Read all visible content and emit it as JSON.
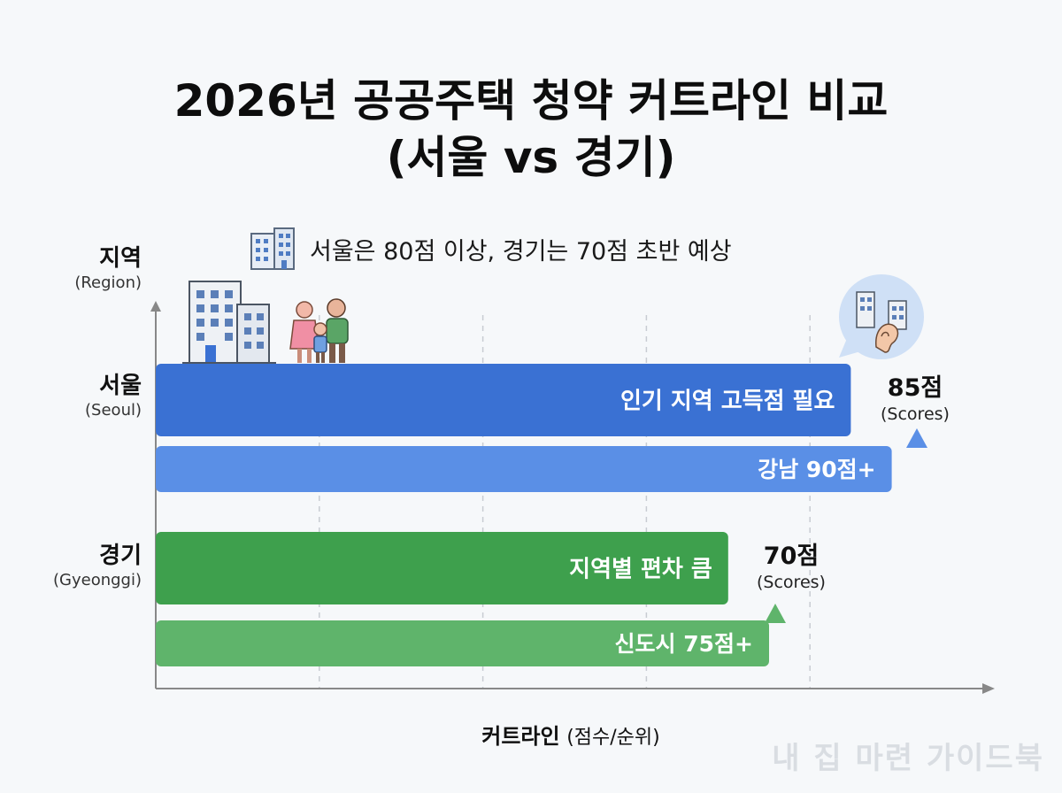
{
  "title_line1": "2026년 공공주택 청약 커트라인 비교",
  "title_line2": "(서울 vs 경기)",
  "subtitle": "서울은 80점 이상, 경기는 70점 초반 예상",
  "watermark": "내 집 마련 가이드북",
  "colors": {
    "seoul_main": "#3a71d3",
    "seoul_sub": "#5a8fe6",
    "gyeonggi_main": "#3ea04d",
    "gyeonggi_sub": "#5fb46b",
    "axis": "#888888",
    "grid": "#c8ccd2"
  },
  "chart_data": {
    "type": "bar",
    "orientation": "horizontal",
    "y_axis_title": {
      "ko": "지역",
      "en": "(Region)"
    },
    "x_axis_title": {
      "bold": "커트라인",
      "rest": "(점수/순위)"
    },
    "categories": [
      {
        "ko": "서울",
        "en": "(Seoul)"
      },
      {
        "ko": "경기",
        "en": "(Gyeonggi)"
      }
    ],
    "xlim": [
      0,
      100
    ],
    "grid": true,
    "bars": [
      {
        "region": "서울",
        "value": 85,
        "label": "인기 지역 고득점 필요",
        "color": "#3a71d3",
        "callout": {
          "num": "85점",
          "unit": "(Scores)"
        }
      },
      {
        "region": "서울",
        "value": 90,
        "label": "강남  90점+",
        "color": "#5a8fe6"
      },
      {
        "region": "경기",
        "value": 70,
        "label": "지역별 편차 큼",
        "color": "#3ea04d",
        "callout": {
          "num": "70점",
          "unit": "(Scores)"
        }
      },
      {
        "region": "경기",
        "value": 75,
        "label": "신도시  75점+",
        "color": "#5fb46b"
      }
    ]
  },
  "icons": [
    "building-icon",
    "family-icon",
    "city-hearing-icon"
  ]
}
